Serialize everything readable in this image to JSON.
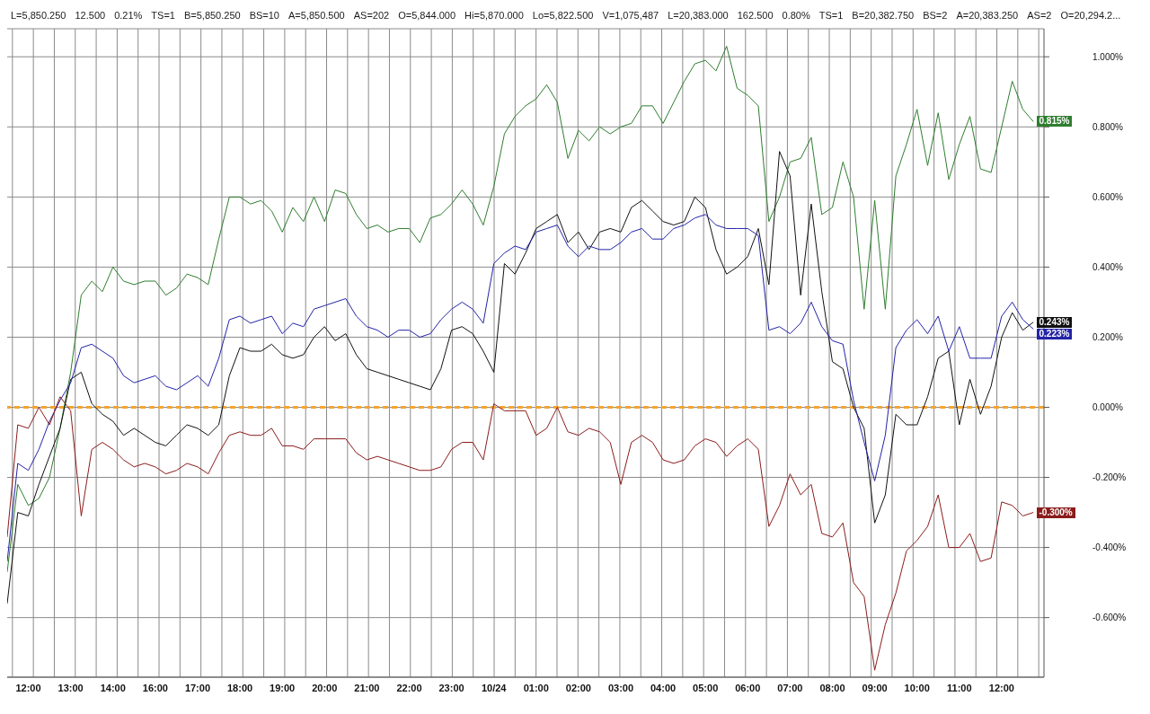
{
  "chart_data": {
    "type": "line",
    "annotations": [
      "L=5,850.250",
      "12.500",
      "0.21%",
      "TS=1",
      "B=5,850.250",
      "BS=10",
      "A=5,850.500",
      "AS=202",
      "O=5,844.000",
      "Hi=5,870.000",
      "Lo=5,822.500",
      "V=1,075,487",
      "L=20,383.000",
      "162.500",
      "0.80%",
      "TS=1",
      "B=20,382.750",
      "BS=2",
      "A=20,383.250",
      "AS=2",
      "O=20,294.2..."
    ],
    "categories": [
      null,
      null,
      "12:00",
      null,
      null,
      null,
      "13:00",
      null,
      null,
      null,
      "14:00",
      null,
      null,
      null,
      "16:00",
      null,
      null,
      null,
      "17:00",
      null,
      null,
      null,
      "18:00",
      null,
      null,
      null,
      "19:00",
      null,
      null,
      null,
      "20:00",
      null,
      null,
      null,
      "21:00",
      null,
      null,
      null,
      "22:00",
      null,
      null,
      null,
      "23:00",
      null,
      null,
      null,
      "10/24",
      null,
      null,
      null,
      "01:00",
      null,
      null,
      null,
      "02:00",
      null,
      null,
      null,
      "03:00",
      null,
      null,
      null,
      "04:00",
      null,
      null,
      null,
      "05:00",
      null,
      null,
      null,
      "06:00",
      null,
      null,
      null,
      "07:00",
      null,
      null,
      null,
      "08:00",
      null,
      null,
      null,
      "09:00",
      null,
      null,
      null,
      "10:00",
      null,
      null,
      null,
      "11:00",
      null,
      null,
      null,
      "12:00",
      null,
      null,
      null,
      null
    ],
    "ylim": [
      -0.77,
      1.08
    ],
    "yticks": [
      {
        "value": -0.6,
        "label": "-0.600%"
      },
      {
        "value": -0.4,
        "label": "-0.400%"
      },
      {
        "value": -0.2,
        "label": "-0.200%"
      },
      {
        "value": 0,
        "label": "0.000%"
      },
      {
        "value": 0.2,
        "label": "0.200%"
      },
      {
        "value": 0.4,
        "label": "0.400%"
      },
      {
        "value": 0.6,
        "label": "0.600%"
      },
      {
        "value": 0.8,
        "label": "0.800%"
      },
      {
        "value": 1,
        "label": "1.000%"
      }
    ],
    "grid": true,
    "marker": "none",
    "line_style": "solid",
    "ref_lines": [
      {
        "axis": "y",
        "value": 0,
        "color": "#f5a431",
        "line_style": "dashed"
      }
    ],
    "series": [
      {
        "color": "#2f7d2f",
        "values": [
          -0.47,
          -0.22,
          -0.28,
          -0.26,
          -0.2,
          -0.06,
          0.1,
          0.32,
          0.36,
          0.33,
          0.4,
          0.36,
          0.35,
          0.36,
          0.36,
          0.32,
          0.34,
          0.38,
          0.37,
          0.35,
          0.48,
          0.6,
          0.6,
          0.58,
          0.59,
          0.56,
          0.5,
          0.57,
          0.53,
          0.6,
          0.53,
          0.62,
          0.61,
          0.55,
          0.51,
          0.52,
          0.5,
          0.51,
          0.51,
          0.47,
          0.54,
          0.55,
          0.58,
          0.62,
          0.58,
          0.52,
          0.63,
          0.78,
          0.83,
          0.86,
          0.88,
          0.92,
          0.87,
          0.71,
          0.79,
          0.76,
          0.8,
          0.78,
          0.8,
          0.81,
          0.86,
          0.86,
          0.81,
          0.87,
          0.93,
          0.98,
          0.99,
          0.96,
          1.03,
          0.91,
          0.89,
          0.86,
          0.53,
          0.6,
          0.7,
          0.71,
          0.77,
          0.55,
          0.57,
          0.7,
          0.6,
          0.28,
          0.59,
          0.28,
          0.66,
          0.75,
          0.85,
          0.69,
          0.84,
          0.65,
          0.75,
          0.83,
          0.68,
          0.67,
          0.8,
          0.93,
          0.85,
          0.815,
          null
        ],
        "value_labels": [
          null,
          null,
          null,
          null,
          null,
          null,
          null,
          null,
          null,
          null,
          null,
          null,
          null,
          null,
          null,
          null,
          null,
          null,
          null,
          null,
          null,
          null,
          null,
          null,
          null,
          null,
          null,
          null,
          null,
          null,
          null,
          null,
          null,
          null,
          null,
          null,
          null,
          null,
          null,
          null,
          null,
          null,
          null,
          null,
          null,
          null,
          null,
          null,
          null,
          null,
          null,
          null,
          null,
          null,
          null,
          null,
          null,
          null,
          null,
          null,
          null,
          null,
          null,
          null,
          null,
          null,
          null,
          null,
          null,
          null,
          null,
          null,
          null,
          null,
          null,
          null,
          null,
          null,
          null,
          null,
          null,
          null,
          null,
          null,
          null,
          null,
          null,
          null,
          null,
          null,
          null,
          null,
          null,
          null,
          null,
          null,
          null,
          "0.815%",
          null
        ]
      },
      {
        "color": "#111111",
        "values": [
          -0.56,
          -0.3,
          -0.31,
          -0.22,
          -0.14,
          -0.06,
          0.08,
          0.1,
          0.01,
          -0.02,
          -0.04,
          -0.08,
          -0.06,
          -0.08,
          -0.1,
          -0.11,
          -0.08,
          -0.05,
          -0.06,
          -0.08,
          -0.05,
          0.09,
          0.17,
          0.16,
          0.16,
          0.18,
          0.15,
          0.14,
          0.15,
          0.2,
          0.23,
          0.19,
          0.21,
          0.15,
          0.11,
          0.1,
          0.09,
          0.08,
          0.07,
          0.06,
          0.05,
          0.11,
          0.22,
          0.23,
          0.21,
          0.16,
          0.1,
          0.41,
          0.38,
          0.44,
          0.51,
          0.53,
          0.55,
          0.47,
          0.5,
          0.45,
          0.5,
          0.51,
          0.5,
          0.57,
          0.59,
          0.56,
          0.53,
          0.52,
          0.53,
          0.6,
          0.57,
          0.45,
          0.38,
          0.4,
          0.43,
          0.51,
          0.35,
          0.73,
          0.66,
          0.32,
          0.58,
          0.33,
          0.13,
          0.11,
          0,
          -0.06,
          -0.33,
          -0.25,
          -0.02,
          -0.05,
          -0.05,
          0.03,
          0.14,
          0.16,
          -0.05,
          0.08,
          -0.02,
          0.06,
          0.2,
          0.27,
          0.22,
          0.243,
          null
        ],
        "value_labels": [
          null,
          null,
          null,
          null,
          null,
          null,
          null,
          null,
          null,
          null,
          null,
          null,
          null,
          null,
          null,
          null,
          null,
          null,
          null,
          null,
          null,
          null,
          null,
          null,
          null,
          null,
          null,
          null,
          null,
          null,
          null,
          null,
          null,
          null,
          null,
          null,
          null,
          null,
          null,
          null,
          null,
          null,
          null,
          null,
          null,
          null,
          null,
          null,
          null,
          null,
          null,
          null,
          null,
          null,
          null,
          null,
          null,
          null,
          null,
          null,
          null,
          null,
          null,
          null,
          null,
          null,
          null,
          null,
          null,
          null,
          null,
          null,
          null,
          null,
          null,
          null,
          null,
          null,
          null,
          null,
          null,
          null,
          null,
          null,
          null,
          null,
          null,
          null,
          null,
          null,
          null,
          null,
          null,
          null,
          null,
          null,
          null,
          "0.243%",
          null
        ]
      },
      {
        "color": "#2323a8",
        "values": [
          -0.44,
          -0.16,
          -0.18,
          -0.12,
          -0.04,
          0.02,
          0.07,
          0.17,
          0.18,
          0.16,
          0.14,
          0.09,
          0.07,
          0.08,
          0.09,
          0.06,
          0.05,
          0.07,
          0.09,
          0.06,
          0.14,
          0.25,
          0.26,
          0.24,
          0.25,
          0.26,
          0.21,
          0.24,
          0.23,
          0.28,
          0.29,
          0.3,
          0.31,
          0.26,
          0.23,
          0.22,
          0.2,
          0.22,
          0.22,
          0.2,
          0.21,
          0.25,
          0.28,
          0.3,
          0.28,
          0.24,
          0.41,
          0.44,
          0.46,
          0.45,
          0.5,
          0.51,
          0.52,
          0.46,
          0.43,
          0.46,
          0.45,
          0.45,
          0.47,
          0.5,
          0.51,
          0.48,
          0.48,
          0.51,
          0.52,
          0.54,
          0.55,
          0.52,
          0.51,
          0.51,
          0.51,
          0.49,
          0.22,
          0.23,
          0.21,
          0.24,
          0.3,
          0.23,
          0.19,
          0.18,
          0.02,
          -0.1,
          -0.21,
          -0.08,
          0.17,
          0.22,
          0.25,
          0.21,
          0.26,
          0.16,
          0.23,
          0.14,
          0.14,
          0.14,
          0.26,
          0.3,
          0.25,
          0.223,
          null
        ],
        "value_labels": [
          null,
          null,
          null,
          null,
          null,
          null,
          null,
          null,
          null,
          null,
          null,
          null,
          null,
          null,
          null,
          null,
          null,
          null,
          null,
          null,
          null,
          null,
          null,
          null,
          null,
          null,
          null,
          null,
          null,
          null,
          null,
          null,
          null,
          null,
          null,
          null,
          null,
          null,
          null,
          null,
          null,
          null,
          null,
          null,
          null,
          null,
          null,
          null,
          null,
          null,
          null,
          null,
          null,
          null,
          null,
          null,
          null,
          null,
          null,
          null,
          null,
          null,
          null,
          null,
          null,
          null,
          null,
          null,
          null,
          null,
          null,
          null,
          null,
          null,
          null,
          null,
          null,
          null,
          null,
          null,
          null,
          null,
          null,
          null,
          null,
          null,
          null,
          null,
          null,
          null,
          null,
          null,
          null,
          null,
          null,
          null,
          null,
          "0.223%",
          null
        ]
      },
      {
        "color": "#8b1c1c",
        "values": [
          -0.37,
          -0.05,
          -0.06,
          0,
          -0.05,
          0.03,
          -0.01,
          -0.31,
          -0.12,
          -0.1,
          -0.12,
          -0.15,
          -0.17,
          -0.16,
          -0.17,
          -0.19,
          -0.18,
          -0.16,
          -0.17,
          -0.19,
          -0.13,
          -0.08,
          -0.07,
          -0.08,
          -0.08,
          -0.06,
          -0.11,
          -0.11,
          -0.12,
          -0.09,
          -0.09,
          -0.09,
          -0.09,
          -0.13,
          -0.15,
          -0.14,
          -0.15,
          -0.16,
          -0.17,
          -0.18,
          -0.18,
          -0.17,
          -0.12,
          -0.1,
          -0.1,
          -0.15,
          0.01,
          -0.01,
          -0.01,
          -0.01,
          -0.08,
          -0.06,
          0,
          -0.07,
          -0.08,
          -0.06,
          -0.07,
          -0.1,
          -0.22,
          -0.1,
          -0.08,
          -0.1,
          -0.15,
          -0.16,
          -0.15,
          -0.11,
          -0.09,
          -0.1,
          -0.14,
          -0.11,
          -0.09,
          -0.12,
          -0.34,
          -0.28,
          -0.19,
          -0.25,
          -0.22,
          -0.36,
          -0.37,
          -0.33,
          -0.5,
          -0.54,
          -0.75,
          -0.62,
          -0.53,
          -0.41,
          -0.38,
          -0.34,
          -0.25,
          -0.4,
          -0.4,
          -0.36,
          -0.44,
          -0.43,
          -0.27,
          -0.28,
          -0.31,
          -0.3,
          null
        ],
        "value_labels": [
          null,
          null,
          null,
          null,
          null,
          null,
          null,
          null,
          null,
          null,
          null,
          null,
          null,
          null,
          null,
          null,
          null,
          null,
          null,
          null,
          null,
          null,
          null,
          null,
          null,
          null,
          null,
          null,
          null,
          null,
          null,
          null,
          null,
          null,
          null,
          null,
          null,
          null,
          null,
          null,
          null,
          null,
          null,
          null,
          null,
          null,
          null,
          null,
          null,
          null,
          null,
          null,
          null,
          null,
          null,
          null,
          null,
          null,
          null,
          null,
          null,
          null,
          null,
          null,
          null,
          null,
          null,
          null,
          null,
          null,
          null,
          null,
          null,
          null,
          null,
          null,
          null,
          null,
          null,
          null,
          null,
          null,
          null,
          null,
          null,
          null,
          null,
          null,
          null,
          null,
          null,
          null,
          null,
          null,
          null,
          null,
          null,
          "-0.300%",
          null
        ]
      }
    ]
  }
}
